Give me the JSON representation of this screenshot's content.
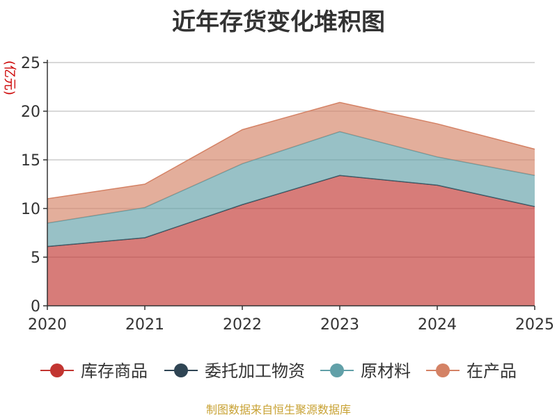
{
  "chart_data": {
    "type": "area",
    "stacked": true,
    "title": "近年存货变化堆积图",
    "ylabel": "(亿元)",
    "x": [
      "2020",
      "2021",
      "2022",
      "2023",
      "2024",
      "2025"
    ],
    "ylim": [
      0,
      25
    ],
    "yticks": [
      "0",
      "5",
      "10",
      "15",
      "20",
      "25"
    ],
    "grid": true,
    "legend_position": "bottom",
    "series": [
      {
        "name": "库存商品",
        "color": "#c23531",
        "values": [
          6.1,
          7.0,
          10.4,
          13.4,
          12.4,
          10.2
        ]
      },
      {
        "name": "委托加工物资",
        "color": "#2f4554",
        "values": [
          0.0,
          0.0,
          0.0,
          0.0,
          0.0,
          0.0
        ]
      },
      {
        "name": "原材料",
        "color": "#61a0a8",
        "values": [
          2.4,
          3.1,
          4.2,
          4.5,
          2.9,
          3.2
        ]
      },
      {
        "name": "在产品",
        "color": "#d48265",
        "values": [
          2.5,
          2.4,
          3.5,
          3.0,
          3.4,
          2.7
        ]
      }
    ]
  },
  "source_note": "制图数据来自恒生聚源数据库"
}
